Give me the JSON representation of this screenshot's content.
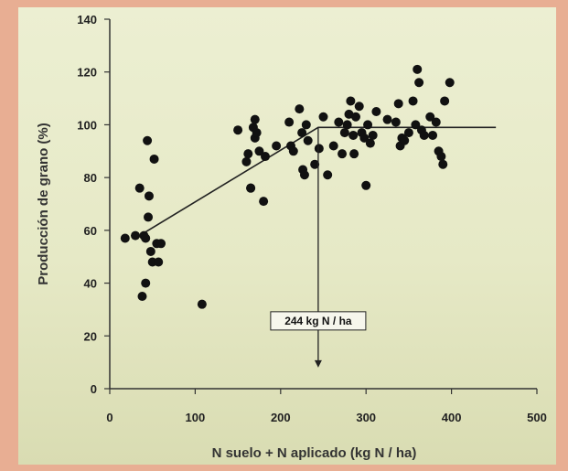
{
  "chart_data": {
    "type": "scatter",
    "xlabel": "N suelo + N aplicado (kg N / ha)",
    "ylabel": "Producción de grano (%)",
    "xlim": [
      0,
      500
    ],
    "ylim": [
      0,
      140
    ],
    "x_ticks": [
      0,
      100,
      200,
      300,
      400,
      500
    ],
    "y_ticks": [
      0,
      20,
      40,
      60,
      80,
      100,
      120,
      140
    ],
    "grid": false,
    "colors": {
      "points": "#111111",
      "line": "#222222",
      "axis": "#333333"
    },
    "points": [
      [
        18,
        57
      ],
      [
        30,
        58
      ],
      [
        35,
        76
      ],
      [
        38,
        35
      ],
      [
        40,
        58
      ],
      [
        42,
        57
      ],
      [
        42,
        40
      ],
      [
        44,
        94
      ],
      [
        45,
        65
      ],
      [
        46,
        73
      ],
      [
        48,
        52
      ],
      [
        50,
        48
      ],
      [
        52,
        87
      ],
      [
        55,
        55
      ],
      [
        57,
        48
      ],
      [
        60,
        55
      ],
      [
        108,
        32
      ],
      [
        150,
        98
      ],
      [
        160,
        86
      ],
      [
        162,
        89
      ],
      [
        165,
        76
      ],
      [
        165,
        76
      ],
      [
        168,
        99
      ],
      [
        170,
        102
      ],
      [
        170,
        95
      ],
      [
        172,
        97
      ],
      [
        175,
        90
      ],
      [
        180,
        71
      ],
      [
        182,
        88
      ],
      [
        195,
        92
      ],
      [
        210,
        101
      ],
      [
        212,
        92
      ],
      [
        215,
        90
      ],
      [
        222,
        106
      ],
      [
        225,
        97
      ],
      [
        226,
        83
      ],
      [
        228,
        81
      ],
      [
        230,
        100
      ],
      [
        232,
        94
      ],
      [
        240,
        85
      ],
      [
        245,
        91
      ],
      [
        250,
        103
      ],
      [
        255,
        81
      ],
      [
        262,
        92
      ],
      [
        268,
        101
      ],
      [
        272,
        89
      ],
      [
        275,
        97
      ],
      [
        278,
        100
      ],
      [
        280,
        104
      ],
      [
        282,
        109
      ],
      [
        285,
        96
      ],
      [
        286,
        89
      ],
      [
        288,
        103
      ],
      [
        292,
        107
      ],
      [
        295,
        97
      ],
      [
        298,
        95
      ],
      [
        300,
        77
      ],
      [
        302,
        100
      ],
      [
        305,
        93
      ],
      [
        308,
        96
      ],
      [
        312,
        105
      ],
      [
        325,
        102
      ],
      [
        335,
        101
      ],
      [
        338,
        108
      ],
      [
        340,
        92
      ],
      [
        342,
        95
      ],
      [
        345,
        94
      ],
      [
        350,
        97
      ],
      [
        355,
        109
      ],
      [
        358,
        100
      ],
      [
        360,
        121
      ],
      [
        362,
        116
      ],
      [
        365,
        98
      ],
      [
        368,
        96
      ],
      [
        375,
        103
      ],
      [
        378,
        96
      ],
      [
        382,
        101
      ],
      [
        385,
        90
      ],
      [
        388,
        88
      ],
      [
        390,
        85
      ],
      [
        392,
        109
      ],
      [
        398,
        116
      ]
    ],
    "fit_line": {
      "x": [
        40,
        244,
        452
      ],
      "y": [
        59,
        99,
        99
      ]
    },
    "annotation": {
      "text": "244 kg N / ha",
      "x_value": 244,
      "arrow_from_y": 99,
      "arrow_to_y": 8,
      "label_y": 25
    }
  }
}
